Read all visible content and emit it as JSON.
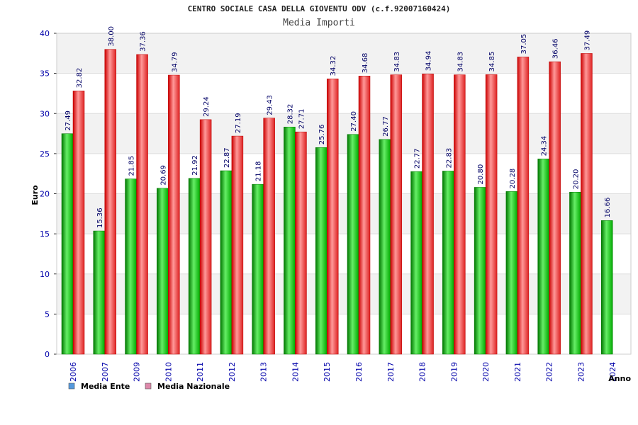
{
  "chart_data": {
    "type": "bar",
    "title": "CENTRO SOCIALE CASA DELLA GIOVENTU ODV (c.f.92007160424)",
    "subtitle": "Media Importi",
    "ylabel": "Euro",
    "xlabel": "Anno",
    "ylim": [
      0,
      40
    ],
    "yticks": [
      0,
      5,
      10,
      15,
      20,
      25,
      30,
      35,
      40
    ],
    "categories": [
      "2006",
      "2007",
      "2009",
      "2010",
      "2011",
      "2012",
      "2013",
      "2014",
      "2015",
      "2016",
      "2017",
      "2018",
      "2019",
      "2020",
      "2021",
      "2022",
      "2023",
      "2024"
    ],
    "series": [
      {
        "name": "Media Ente",
        "color": "#22bb22",
        "values": [
          27.49,
          15.36,
          21.85,
          20.69,
          21.92,
          22.87,
          21.18,
          28.32,
          25.76,
          27.4,
          26.77,
          22.77,
          22.83,
          20.8,
          20.28,
          24.34,
          20.2,
          16.66
        ],
        "labels": [
          "27.49",
          "15.36",
          "21.85",
          "20.69",
          "21.92",
          "22.87",
          "21.18",
          "28.32",
          "25.76",
          "27.40",
          "26.77",
          "22.77",
          "22.83",
          "20.80",
          "20.28",
          "24.34",
          "20.20",
          "16.66"
        ]
      },
      {
        "name": "Media Nazionale",
        "color": "#ee3333",
        "values": [
          32.82,
          38.0,
          37.36,
          34.79,
          29.24,
          27.19,
          29.43,
          27.71,
          34.32,
          34.68,
          34.83,
          34.94,
          34.83,
          34.85,
          37.05,
          36.46,
          37.49,
          null
        ],
        "labels": [
          "32.82",
          "38.00",
          "37.36",
          "34.79",
          "29.24",
          "27.19",
          "29.43",
          "27.71",
          "34.32",
          "34.68",
          "34.83",
          "34.94",
          "34.83",
          "34.85",
          "37.05",
          "36.46",
          "37.49",
          ""
        ]
      }
    ],
    "legend": {
      "position": "bottom-left",
      "items": [
        {
          "label": "Media Ente",
          "color": "#5599dd"
        },
        {
          "label": "Media Nazionale",
          "color": "#dd88aa"
        }
      ]
    },
    "grid": true,
    "band_colors": [
      "#f2f2f2",
      "#ffffff"
    ],
    "axis_text_color": "#0000aa",
    "label_text_color": "#000066"
  }
}
